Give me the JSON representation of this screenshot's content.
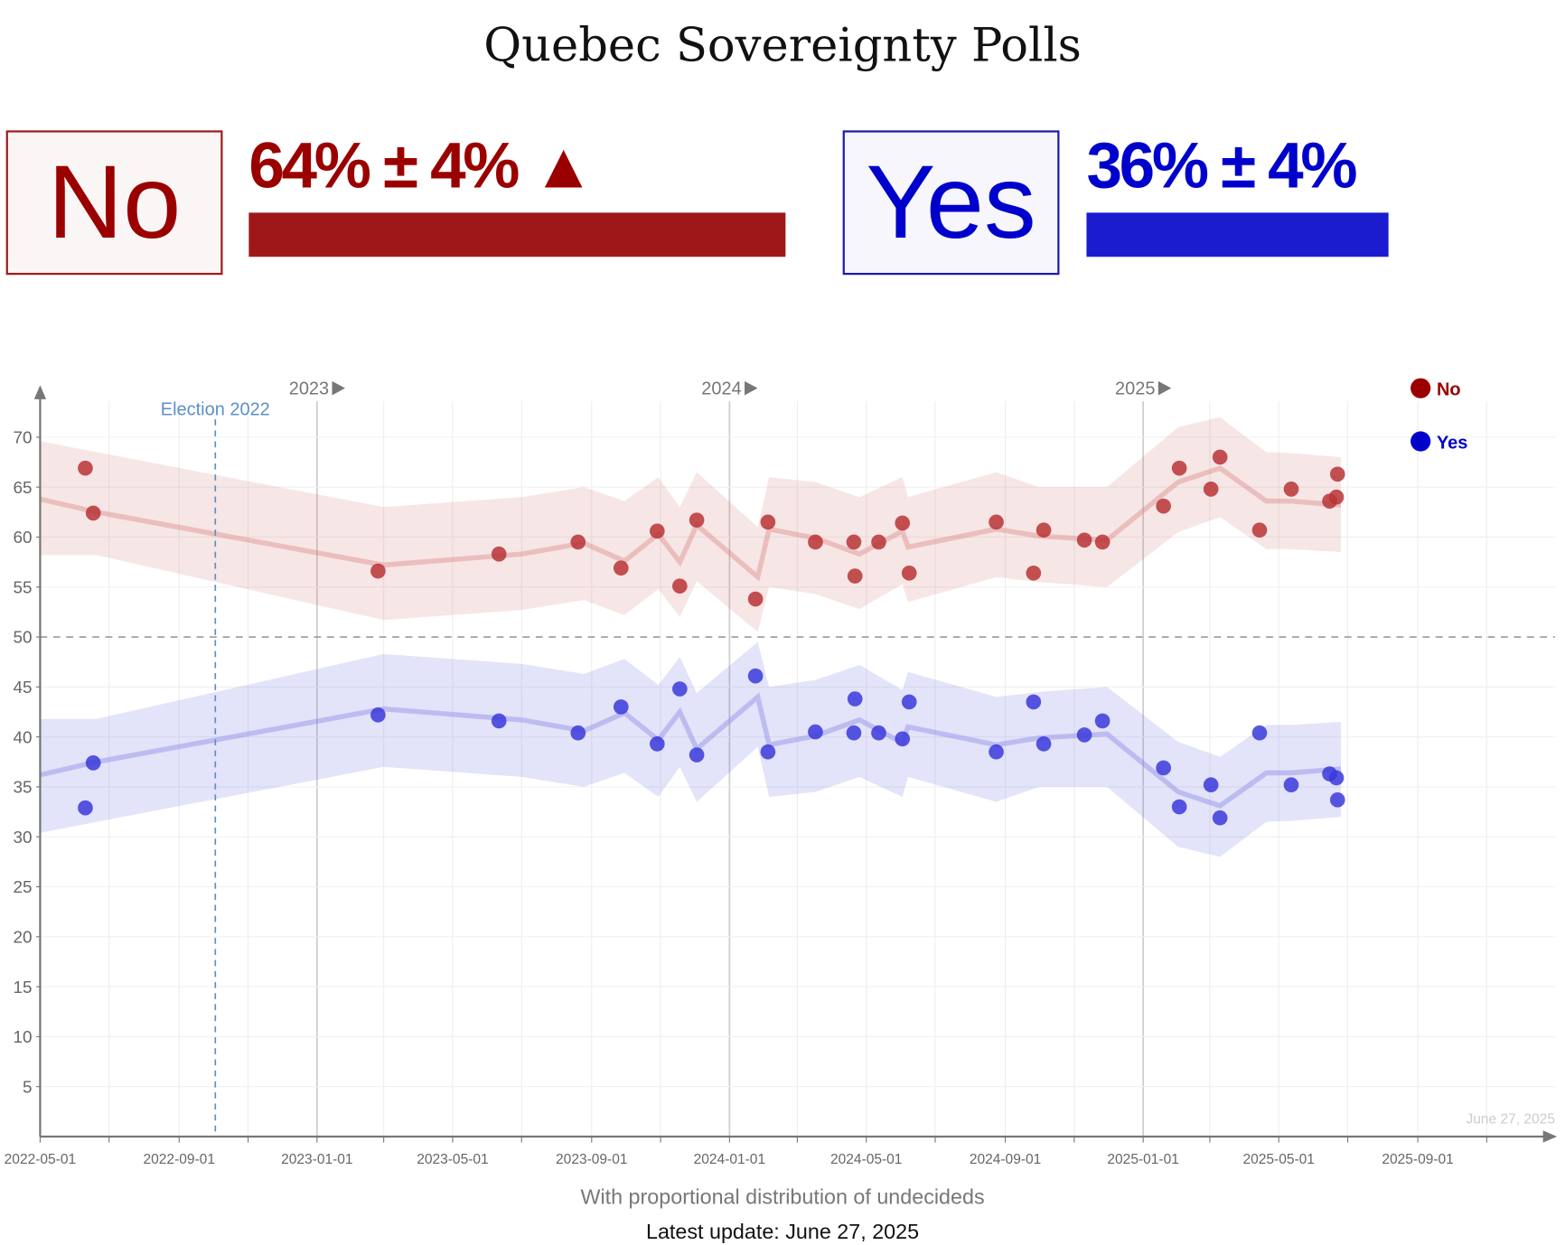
{
  "title": "Quebec Sovereignty Polls",
  "summary": {
    "no": {
      "label": "No",
      "value_text": "64% ± 4%",
      "trend_arrow": "▲",
      "value": 64,
      "color": "#9e181a"
    },
    "yes": {
      "label": "Yes",
      "value_text": "36% ± 4%",
      "value": 36,
      "color": "#1b1bd0"
    }
  },
  "subtitle": "With proportional distribution of undecideds",
  "latest_update": "Latest update: June 27, 2025",
  "chart_data": {
    "type": "scatter",
    "xlabel": "",
    "ylabel": "",
    "ylim": [
      0,
      75
    ],
    "xlim": [
      "2022-05-01",
      "2025-11-15"
    ],
    "y_ticks": [
      5,
      10,
      15,
      20,
      25,
      30,
      35,
      40,
      45,
      50,
      55,
      60,
      65,
      70
    ],
    "x_tick_labels": [
      "2022-05-01",
      "2022-09-01",
      "2023-01-01",
      "2023-05-01",
      "2023-09-01",
      "2024-01-01",
      "2024-05-01",
      "2024-09-01",
      "2025-01-01",
      "2025-05-01",
      "2025-09-01"
    ],
    "year_markers": [
      "2023",
      "2024",
      "2025"
    ],
    "reference_line": {
      "value": 50,
      "style": "dashed"
    },
    "annotation": {
      "date": "2022-10-03",
      "label": "Election 2022"
    },
    "end_label": "June 27, 2025",
    "legend": {
      "placement": "top-right",
      "entries": [
        "No",
        "Yes"
      ]
    },
    "series": [
      {
        "name": "No",
        "color": "#b83436",
        "points": [
          [
            "2022-06-10",
            66.9
          ],
          [
            "2022-06-17",
            62.4
          ],
          [
            "2023-02-24",
            56.6
          ],
          [
            "2023-06-11",
            58.3
          ],
          [
            "2023-08-20",
            59.5
          ],
          [
            "2023-09-27",
            56.9
          ],
          [
            "2023-10-29",
            60.6
          ],
          [
            "2023-11-18",
            55.1
          ],
          [
            "2023-12-03",
            61.7
          ],
          [
            "2024-01-24",
            53.8
          ],
          [
            "2024-02-04",
            61.5
          ],
          [
            "2024-03-17",
            59.5
          ],
          [
            "2024-04-20",
            59.5
          ],
          [
            "2024-04-21",
            56.1
          ],
          [
            "2024-05-12",
            59.5
          ],
          [
            "2024-06-02",
            61.4
          ],
          [
            "2024-06-08",
            56.4
          ],
          [
            "2024-08-24",
            61.5
          ],
          [
            "2024-09-26",
            56.4
          ],
          [
            "2024-10-05",
            60.7
          ],
          [
            "2024-11-10",
            59.7
          ],
          [
            "2024-11-26",
            59.5
          ],
          [
            "2025-01-19",
            63.1
          ],
          [
            "2025-02-02",
            66.9
          ],
          [
            "2025-03-02",
            64.8
          ],
          [
            "2025-03-10",
            68.0
          ],
          [
            "2025-04-14",
            60.7
          ],
          [
            "2025-05-12",
            64.8
          ],
          [
            "2025-06-15",
            63.6
          ],
          [
            "2025-06-21",
            64.0
          ],
          [
            "2025-06-22",
            66.3
          ]
        ],
        "trend": [
          [
            "2022-05-01",
            63.8,
            58.2,
            69.6
          ],
          [
            "2022-06-20",
            62.5,
            58.2,
            68.5
          ],
          [
            "2023-03-01",
            57.2,
            51.7,
            63.0
          ],
          [
            "2023-07-01",
            58.3,
            52.7,
            64.0
          ],
          [
            "2023-08-25",
            59.4,
            53.7,
            65.0
          ],
          [
            "2023-09-30",
            57.6,
            52.2,
            63.6
          ],
          [
            "2023-10-30",
            60.3,
            54.8,
            66.0
          ],
          [
            "2023-11-18",
            57.5,
            52.0,
            63.0
          ],
          [
            "2023-12-03",
            61.2,
            55.6,
            66.5
          ],
          [
            "2024-01-26",
            56.0,
            50.5,
            61.0
          ],
          [
            "2024-02-05",
            60.8,
            55.0,
            66.0
          ],
          [
            "2024-03-17",
            59.9,
            54.3,
            65.5
          ],
          [
            "2024-04-25",
            58.3,
            52.8,
            64.0
          ],
          [
            "2024-06-02",
            60.6,
            55.3,
            66.0
          ],
          [
            "2024-06-07",
            59.0,
            53.5,
            64.0
          ],
          [
            "2024-08-24",
            60.8,
            56.0,
            66.5
          ],
          [
            "2024-10-01",
            60.1,
            55.5,
            65.0
          ],
          [
            "2024-11-30",
            59.7,
            55.0,
            65.0
          ],
          [
            "2025-02-01",
            65.5,
            60.5,
            71.0
          ],
          [
            "2025-03-10",
            66.9,
            62.0,
            72.0
          ],
          [
            "2025-04-20",
            63.6,
            58.8,
            68.5
          ],
          [
            "2025-05-12",
            63.6,
            58.8,
            68.4
          ],
          [
            "2025-06-25",
            63.2,
            58.5,
            68.0
          ]
        ]
      },
      {
        "name": "Yes",
        "color": "#3a3adc",
        "points": [
          [
            "2022-06-10",
            32.9
          ],
          [
            "2022-06-17",
            37.4
          ],
          [
            "2023-02-24",
            42.2
          ],
          [
            "2023-06-11",
            41.6
          ],
          [
            "2023-08-20",
            40.4
          ],
          [
            "2023-09-27",
            43.0
          ],
          [
            "2023-10-29",
            39.3
          ],
          [
            "2023-11-18",
            44.8
          ],
          [
            "2023-12-03",
            38.2
          ],
          [
            "2024-01-24",
            46.1
          ],
          [
            "2024-02-04",
            38.5
          ],
          [
            "2024-03-17",
            40.5
          ],
          [
            "2024-04-20",
            40.4
          ],
          [
            "2024-04-21",
            43.8
          ],
          [
            "2024-05-12",
            40.4
          ],
          [
            "2024-06-02",
            39.8
          ],
          [
            "2024-06-08",
            43.5
          ],
          [
            "2024-08-24",
            38.5
          ],
          [
            "2024-09-26",
            43.5
          ],
          [
            "2024-10-05",
            39.3
          ],
          [
            "2024-11-10",
            40.2
          ],
          [
            "2024-11-26",
            41.6
          ],
          [
            "2025-01-19",
            36.9
          ],
          [
            "2025-02-02",
            33.0
          ],
          [
            "2025-03-02",
            35.2
          ],
          [
            "2025-03-10",
            31.9
          ],
          [
            "2025-04-14",
            40.4
          ],
          [
            "2025-05-12",
            35.2
          ],
          [
            "2025-06-15",
            36.3
          ],
          [
            "2025-06-21",
            35.9
          ],
          [
            "2025-06-22",
            33.7
          ]
        ],
        "trend": "mirror_of_no"
      }
    ]
  }
}
